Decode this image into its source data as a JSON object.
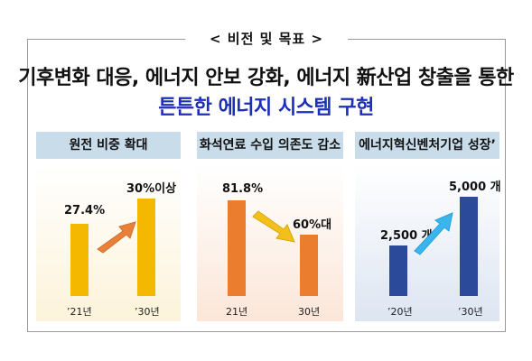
{
  "vision_title": "< 비전 및 목표 >",
  "headline": {
    "line1": "기후변화 대응, 에너지 안보 강화, 에너지 新산업 창출을 통한",
    "line2": "튼튼한 에너지 시스템 구현"
  },
  "panels": [
    {
      "title": "원전 비중 확대",
      "color": "#f5b800",
      "arrow_color": "#e8803a",
      "items": [
        {
          "label": "27.4%",
          "year": "’21년",
          "value": 27.4
        },
        {
          "label": "30%이상",
          "year": "’30년",
          "value": 30
        }
      ]
    },
    {
      "title": "화석연료 수입 의존도 감소",
      "color": "#ea7d2e",
      "arrow_color": "#f3c01a",
      "items": [
        {
          "label": "81.8%",
          "year": "21년",
          "value": 81.8
        },
        {
          "label": "60%대",
          "year": "30년",
          "value": 60
        }
      ]
    },
    {
      "title": "에너지혁신벤처기업 성장’",
      "color": "#2b4a9a",
      "arrow_color": "#3ab5ee",
      "items": [
        {
          "label": "2,500 개",
          "year": "’20년",
          "value": 2500
        },
        {
          "label": "5,000 개",
          "year": "’30년",
          "value": 5000
        }
      ]
    }
  ]
}
